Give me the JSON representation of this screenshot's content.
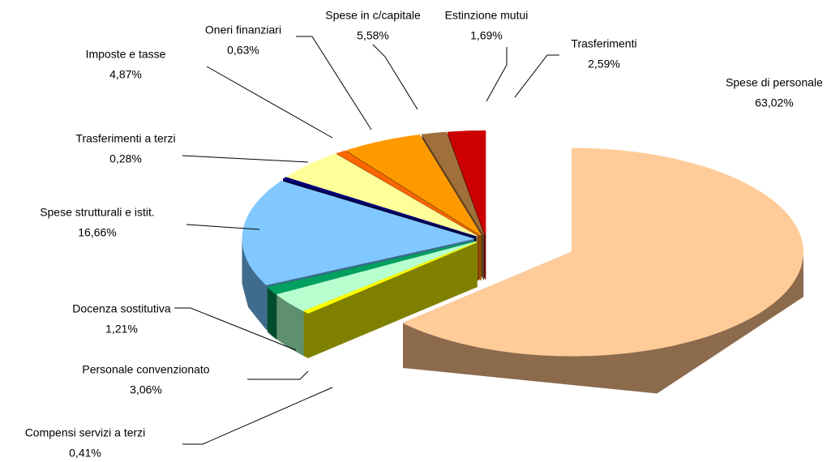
{
  "chart_data": {
    "type": "pie",
    "categories": [
      "Spese di personale",
      "Compensi servizi a terzi",
      "Personale convenzionato",
      "Docenza sostitutiva",
      "Spese strutturali e istit.",
      "Trasferimenti a terzi",
      "Imposte e tasse",
      "Oneri finanziari",
      "Spese in c/capitale",
      "Estinzione mutui",
      "Trasferimenti"
    ],
    "values": [
      63.02,
      0.41,
      3.06,
      1.21,
      16.66,
      0.28,
      4.87,
      0.63,
      5.58,
      1.69,
      2.59
    ],
    "value_labels": [
      "63,02%",
      "0,41%",
      "3,06%",
      "1,21%",
      "16,66%",
      "0,28%",
      "4,87%",
      "0,63%",
      "5,58%",
      "1,69%",
      "2,59%"
    ],
    "colors": [
      "#ffcc99",
      "#ffff00",
      "#b8ffd0",
      "#00a060",
      "#80c8ff",
      "#000080",
      "#ffff99",
      "#ff6600",
      "#ff9900",
      "#a0703a",
      "#cc0000"
    ],
    "side_colors": [
      "#8c6a4c",
      "#808000",
      "#5f8f70",
      "#004d2e",
      "#3f6b8c",
      "#000040",
      "#8c8c4c",
      "#8c3a00",
      "#8c5500",
      "#5a3e20",
      "#6a0000"
    ]
  }
}
